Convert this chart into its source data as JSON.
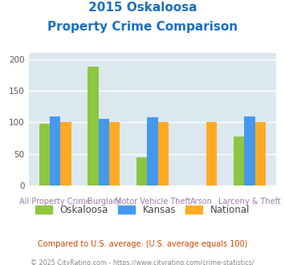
{
  "title_line1": "2015 Oskaloosa",
  "title_line2": "Property Crime Comparison",
  "oskaloosa": [
    98,
    188,
    44,
    0,
    78
  ],
  "kansas": [
    110,
    106,
    108,
    0,
    110
  ],
  "national": [
    100,
    100,
    100,
    100,
    100
  ],
  "bar_color_oskaloosa": "#8dc63f",
  "bar_color_kansas": "#4499ee",
  "bar_color_national": "#ffaa22",
  "ylim": [
    0,
    210
  ],
  "yticks": [
    0,
    50,
    100,
    150,
    200
  ],
  "bg_color": "#dce8f0",
  "title_color": "#1a6fbd",
  "xlabel_color": "#9b7fa6",
  "note_text": "Compared to U.S. average. (U.S. average equals 100)",
  "note_color": "#cc4400",
  "footer_text": "© 2025 CityRating.com - https://www.cityrating.com/crime-statistics/",
  "footer_color": "#888888",
  "legend_labels": [
    "Oskaloosa",
    "Kansas",
    "National"
  ],
  "top_labels": {
    "1": "Burglary",
    "3": "Arson"
  },
  "bottom_labels": {
    "0": "All Property Crime",
    "2": "Motor Vehicle Theft",
    "4": "Larceny & Theft"
  }
}
